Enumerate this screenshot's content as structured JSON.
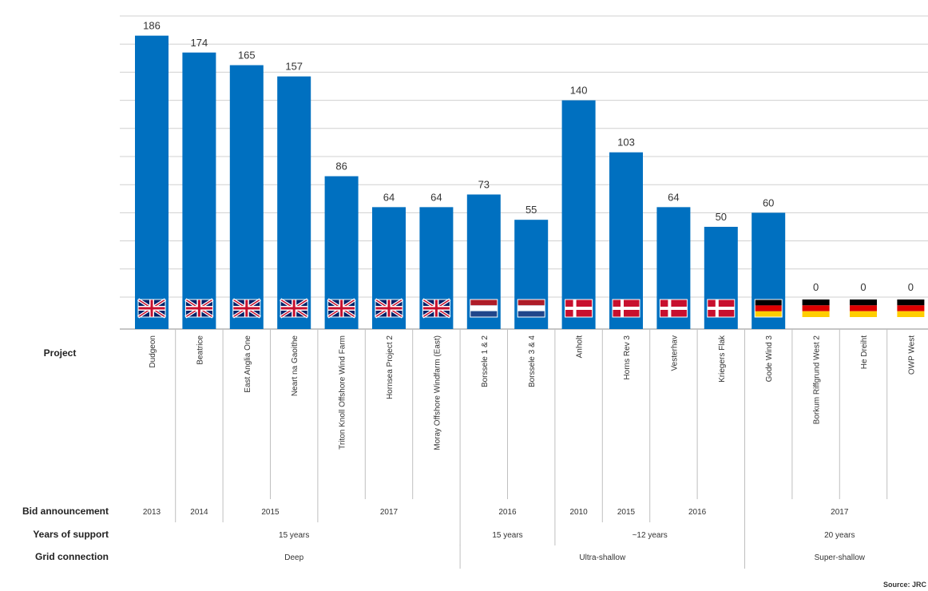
{
  "chart_data": {
    "type": "bar",
    "categories": [
      "Dudgeon",
      "Beatrice",
      "East Anglia One",
      "Neart na Gaoithe",
      "Triton Knoll Offshore Wind Farm",
      "Hornsea Project 2",
      "Moray Offshore Windfarm (East)",
      "Borssele 1 & 2",
      "Borssele 3 & 4",
      "Anholt",
      "Horns Rev 3",
      "Vesterhav",
      "Kriegers Flak",
      "Gode Wind 3",
      "Borkum Riffgrund West 2",
      "He Dreiht",
      "OWP West"
    ],
    "values": [
      186,
      174,
      165,
      157,
      86,
      64,
      64,
      73,
      55,
      140,
      103,
      64,
      50,
      60,
      0,
      0,
      0
    ],
    "flags": [
      "uk",
      "uk",
      "uk",
      "uk",
      "uk",
      "uk",
      "uk",
      "nl",
      "nl",
      "dk",
      "dk",
      "dk",
      "dk",
      "de",
      "de",
      "de",
      "de"
    ],
    "bar_color": "#0070c0",
    "grid": true,
    "ylim": [
      -20,
      200
    ],
    "rows": [
      {
        "label": "Project"
      },
      {
        "label": "Bid announcement",
        "groups": [
          {
            "text": "2013",
            "start": 0,
            "end": 0
          },
          {
            "text": "2014",
            "start": 1,
            "end": 1
          },
          {
            "text": "2015",
            "start": 2,
            "end": 3
          },
          {
            "text": "2017",
            "start": 4,
            "end": 6
          },
          {
            "text": "2016",
            "start": 7,
            "end": 8
          },
          {
            "text": "2010",
            "start": 9,
            "end": 9
          },
          {
            "text": "2015",
            "start": 10,
            "end": 10
          },
          {
            "text": "2016",
            "start": 11,
            "end": 12
          },
          {
            "text": "2017",
            "start": 13,
            "end": 16
          }
        ]
      },
      {
        "label": "Years of support",
        "groups": [
          {
            "text": "15 years",
            "start": 0,
            "end": 6
          },
          {
            "text": "15 years",
            "start": 7,
            "end": 8
          },
          {
            "text": "~12 years",
            "start": 9,
            "end": 12
          },
          {
            "text": "20 years",
            "start": 13,
            "end": 16
          }
        ]
      },
      {
        "label": "Grid connection",
        "groups": [
          {
            "text": "Deep",
            "start": 0,
            "end": 6
          },
          {
            "text": "Ultra-shallow",
            "start": 7,
            "end": 12
          },
          {
            "text": "Super-shallow",
            "start": 13,
            "end": 16
          }
        ]
      }
    ],
    "source": "Source: JRC"
  }
}
